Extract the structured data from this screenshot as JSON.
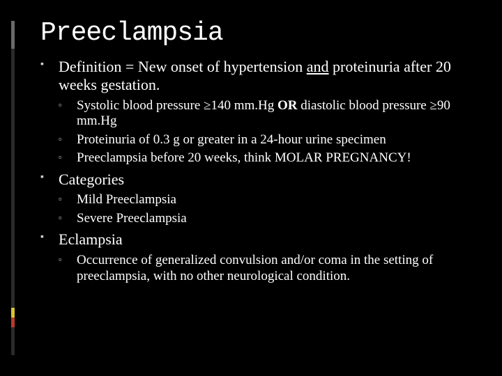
{
  "colors": {
    "background": "#000000",
    "text": "#ffffff",
    "bullet": "#cfcfcf",
    "accent_gray": "#6a6a6a",
    "accent_dark": "#2a2a2a",
    "accent_yellow": "#d6c235",
    "accent_red": "#b83a2e"
  },
  "typography": {
    "title_font": "Courier New",
    "body_font": "Georgia",
    "title_size_pt": 28,
    "lvl1_size_pt": 17,
    "lvl2_size_pt": 14
  },
  "title": "Preeclampsia",
  "bullets": [
    {
      "text_pre": "Definition = New onset of hypertension ",
      "text_und": "and",
      "text_post": " proteinuria after 20 weeks gestation.",
      "children": [
        {
          "text_pre": "Systolic blood pressure ≥140 mm.Hg ",
          "text_bold": "OR",
          "text_post": " diastolic blood pressure ≥90 mm.Hg"
        },
        {
          "text": "Proteinuria of 0.3 g or greater in a 24-hour urine specimen"
        },
        {
          "text": "Preeclampsia before 20 weeks, think MOLAR PREGNANCY!"
        }
      ]
    },
    {
      "text": "Categories",
      "children": [
        {
          "text": "Mild Preeclampsia"
        },
        {
          "text": "Severe Preeclampsia"
        }
      ]
    },
    {
      "text": "Eclampsia",
      "children": [
        {
          "text": "Occurrence of generalized convulsion and/or coma in the setting of preeclampsia, with no other neurological condition."
        }
      ]
    }
  ]
}
